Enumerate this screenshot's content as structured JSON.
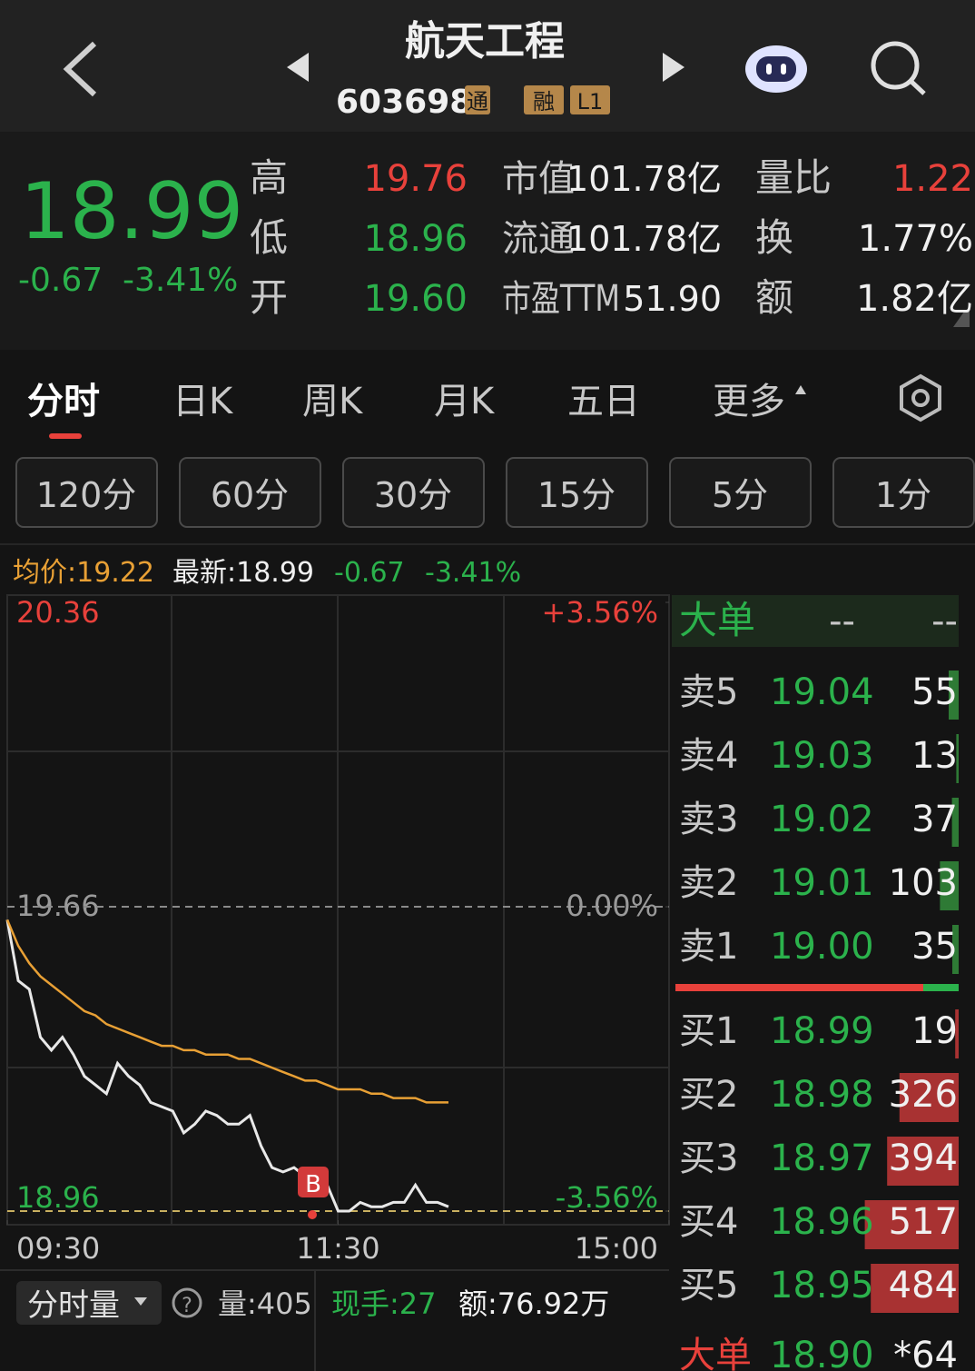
{
  "header": {
    "title": "航天工程",
    "code": "603698",
    "tags": [
      "通",
      "融",
      "L1"
    ]
  },
  "quote": {
    "price": "18.99",
    "change": "-0.67",
    "change_pct": "-3.41%",
    "stats": [
      {
        "label": "高",
        "value": "19.76"
      },
      {
        "label": "低",
        "value": "18.96"
      },
      {
        "label": "开",
        "value": "19.60"
      }
    ],
    "metrics": [
      {
        "label": "市值",
        "value": "101.78亿"
      },
      {
        "label": "流通",
        "value": "101.78亿"
      },
      {
        "label": "市盈TTM",
        "value": "51.90"
      }
    ],
    "ratios": [
      {
        "label": "量比",
        "value": "1.22"
      },
      {
        "label": "换",
        "value": "1.77%"
      },
      {
        "label": "额",
        "value": "1.82亿"
      }
    ]
  },
  "tabs": [
    "分时",
    "日K",
    "周K",
    "月K",
    "五日",
    "更多"
  ],
  "periods": [
    "120分",
    "60分",
    "30分",
    "15分",
    "5分",
    "1分"
  ],
  "info": {
    "avg": "均价:19.22",
    "latest": "最新:18.99",
    "change": "-0.67",
    "change_pct": "-3.41%"
  },
  "chart_data": {
    "type": "line",
    "x": [
      0,
      4,
      8,
      12,
      16,
      20,
      24,
      28,
      32,
      36,
      40,
      44,
      48,
      52,
      56,
      60,
      64,
      68,
      72,
      76,
      80,
      84,
      88,
      92,
      96,
      100,
      104,
      108,
      112,
      116,
      120,
      124,
      128,
      132,
      136,
      140,
      144,
      148,
      152,
      156,
      160
    ],
    "series": [
      {
        "name": "最新",
        "color": "#e8e8e8",
        "values": [
          19.63,
          19.49,
          19.47,
          19.36,
          19.33,
          19.36,
          19.32,
          19.27,
          19.25,
          19.23,
          19.3,
          19.27,
          19.25,
          19.21,
          19.2,
          19.19,
          19.14,
          19.16,
          19.19,
          19.18,
          19.16,
          19.16,
          19.18,
          19.11,
          19.06,
          19.05,
          19.06,
          19.04,
          19.03,
          19.02,
          18.96,
          18.96,
          18.98,
          18.97,
          18.97,
          18.98,
          18.98,
          19.02,
          18.98,
          18.98,
          18.97
        ]
      },
      {
        "name": "均价",
        "color": "#e8a035",
        "values": [
          19.63,
          19.57,
          19.53,
          19.5,
          19.48,
          19.46,
          19.44,
          19.42,
          19.41,
          19.39,
          19.38,
          19.37,
          19.36,
          19.35,
          19.34,
          19.34,
          19.33,
          19.33,
          19.32,
          19.32,
          19.32,
          19.31,
          19.31,
          19.3,
          19.29,
          19.28,
          19.27,
          19.26,
          19.26,
          19.25,
          19.24,
          19.24,
          19.24,
          19.23,
          19.23,
          19.22,
          19.22,
          19.22,
          19.21,
          19.21,
          19.21
        ]
      }
    ],
    "xlim": [
      0,
      240
    ],
    "xticks": [
      {
        "value": 0,
        "label": "09:30"
      },
      {
        "value": 120,
        "label": "11:30"
      },
      {
        "value": 240,
        "label": "15:00"
      }
    ],
    "ylim": [
      18.96,
      20.36
    ],
    "yticks": [
      20.36,
      19.66,
      18.96
    ],
    "y2lim": [
      -3.56,
      3.56
    ],
    "y2ticks": [
      {
        "value": 3.56,
        "label": "+3.56%"
      },
      {
        "value": 0,
        "label": "0.00%"
      },
      {
        "value": -3.56,
        "label": "-3.56%"
      }
    ],
    "marker": "B"
  },
  "order_book": {
    "header": [
      "大单",
      "--",
      "--"
    ],
    "asks": [
      {
        "label": "卖5",
        "price": "19.04",
        "volume": 55
      },
      {
        "label": "卖4",
        "price": "19.03",
        "volume": 13
      },
      {
        "label": "卖3",
        "price": "19.02",
        "volume": 37
      },
      {
        "label": "卖2",
        "price": "19.01",
        "volume": 103
      },
      {
        "label": "卖1",
        "price": "19.00",
        "volume": 35
      }
    ],
    "bids": [
      {
        "label": "买1",
        "price": "18.99",
        "volume": 19
      },
      {
        "label": "买2",
        "price": "18.98",
        "volume": 326
      },
      {
        "label": "买3",
        "price": "18.97",
        "volume": 394
      },
      {
        "label": "买4",
        "price": "18.96",
        "volume": 517
      },
      {
        "label": "买5",
        "price": "18.95",
        "volume": 484
      }
    ],
    "big": {
      "label": "大单",
      "price": "18.90",
      "volume": "*64"
    }
  },
  "volume_panel": {
    "selector": "分时量",
    "volume": "量:405",
    "current": "现手:27",
    "amount": "额:76.92万"
  }
}
